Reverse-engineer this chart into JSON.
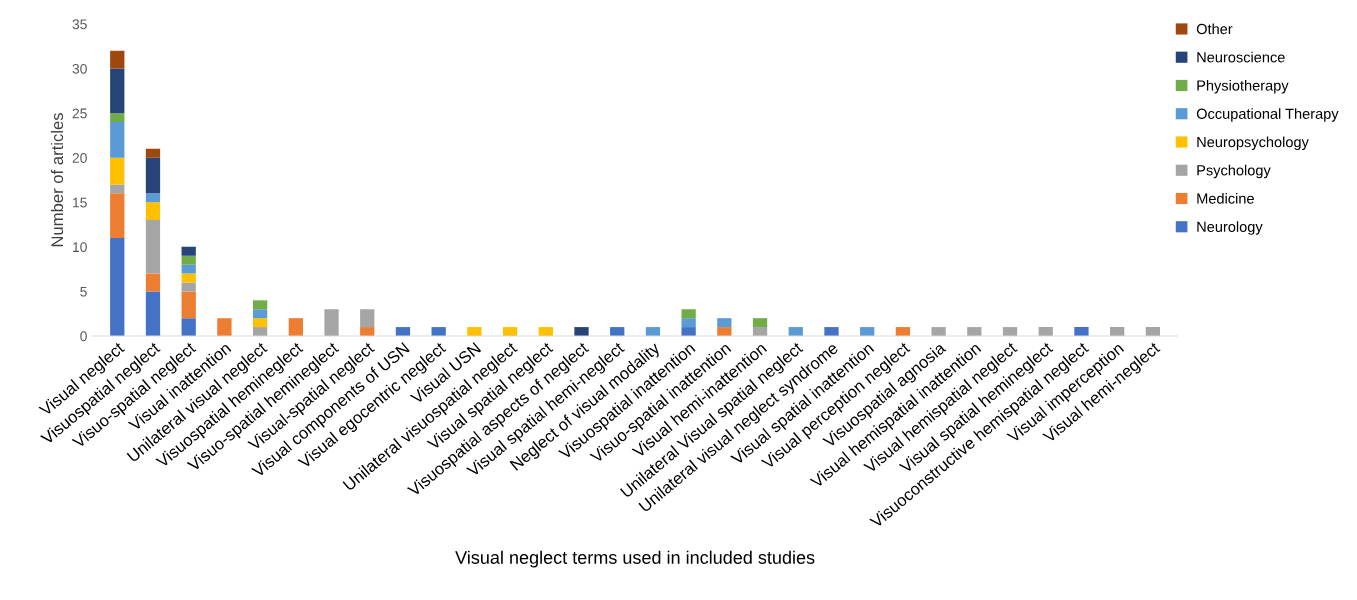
{
  "chart_data": {
    "type": "bar",
    "stacked": true,
    "xlabel": "Visual neglect terms used in included studies",
    "ylabel": "Number of articles",
    "categories": [
      "Visual neglect",
      "Visuospatial neglect",
      "Visuo-spatial neglect",
      "Visual inattention",
      "Unilateral visual neglect",
      "Visuospatial hemineglect",
      "Visuo-spatial hemineglect",
      "Visual-spatial neglect",
      "Visual components of USN",
      "Visual egocentric neglect",
      "Visual USN",
      "Unilateral visuospatial neglect",
      "Visual spatial neglect",
      "Visuospatial aspects of neglect",
      "Visual spatial hemi-neglect",
      "Neglect of visual modality",
      "Visuospatial inattention",
      "Visuo-spatial inattention",
      "Visual hemi-inattention",
      "Unilateral Visual spatial neglect",
      "Unilateral visual neglect syndrome",
      "Visual spatial inattention",
      "Visual perception neglect",
      "Visuospatial agnosia",
      "Visual hemispatial inattention",
      "Visual hemispatial neglect",
      "Visual spatial hemineglect",
      "Visuoconstructive hemispatial neglect",
      "Visual imperception",
      "Visual hemi-neglect"
    ],
    "series": [
      {
        "name": "Neurology",
        "color": "#4472c4",
        "values": [
          11,
          5,
          2,
          0,
          0,
          0,
          0,
          0,
          1,
          1,
          0,
          0,
          0,
          0,
          1,
          0,
          1,
          0,
          0,
          0,
          1,
          0,
          0,
          0,
          0,
          0,
          0,
          1,
          0,
          0
        ]
      },
      {
        "name": "Medicine",
        "color": "#ed7d31",
        "values": [
          5,
          2,
          3,
          2,
          0,
          2,
          0,
          1,
          0,
          0,
          0,
          0,
          0,
          0,
          0,
          0,
          0,
          1,
          0,
          0,
          0,
          0,
          1,
          0,
          0,
          0,
          0,
          0,
          0,
          0
        ]
      },
      {
        "name": "Psychology",
        "color": "#a5a5a5",
        "values": [
          1,
          6,
          1,
          0,
          1,
          0,
          3,
          2,
          0,
          0,
          0,
          0,
          0,
          0,
          0,
          0,
          0,
          0,
          1,
          0,
          0,
          0,
          0,
          1,
          1,
          1,
          1,
          0,
          1,
          1
        ]
      },
      {
        "name": "Neuropsychology",
        "color": "#ffc000",
        "values": [
          3,
          2,
          1,
          0,
          1,
          0,
          0,
          0,
          0,
          0,
          1,
          1,
          1,
          0,
          0,
          0,
          0,
          0,
          0,
          0,
          0,
          0,
          0,
          0,
          0,
          0,
          0,
          0,
          0,
          0
        ]
      },
      {
        "name": "Occupational Therapy",
        "color": "#5b9bd5",
        "values": [
          4,
          1,
          1,
          0,
          1,
          0,
          0,
          0,
          0,
          0,
          0,
          0,
          0,
          0,
          0,
          1,
          1,
          1,
          0,
          1,
          0,
          1,
          0,
          0,
          0,
          0,
          0,
          0,
          0,
          0
        ]
      },
      {
        "name": "Physiotherapy",
        "color": "#70ad47",
        "values": [
          1,
          0,
          1,
          0,
          1,
          0,
          0,
          0,
          0,
          0,
          0,
          0,
          0,
          0,
          0,
          0,
          1,
          0,
          1,
          0,
          0,
          0,
          0,
          0,
          0,
          0,
          0,
          0,
          0,
          0
        ]
      },
      {
        "name": "Neuroscience",
        "color": "#264478",
        "values": [
          5,
          4,
          1,
          0,
          0,
          0,
          0,
          0,
          0,
          0,
          0,
          0,
          0,
          1,
          0,
          0,
          0,
          0,
          0,
          0,
          0,
          0,
          0,
          0,
          0,
          0,
          0,
          0,
          0,
          0
        ]
      },
      {
        "name": "Other",
        "color": "#9e480e",
        "values": [
          2,
          1,
          0,
          0,
          0,
          0,
          0,
          0,
          0,
          0,
          0,
          0,
          0,
          0,
          0,
          0,
          0,
          0,
          0,
          0,
          0,
          0,
          0,
          0,
          0,
          0,
          0,
          0,
          0,
          0
        ]
      }
    ],
    "ylim": [
      0,
      35
    ],
    "yticks": [
      0,
      5,
      10,
      15,
      20,
      25,
      30,
      35
    ],
    "grid": false,
    "legend": "right"
  }
}
